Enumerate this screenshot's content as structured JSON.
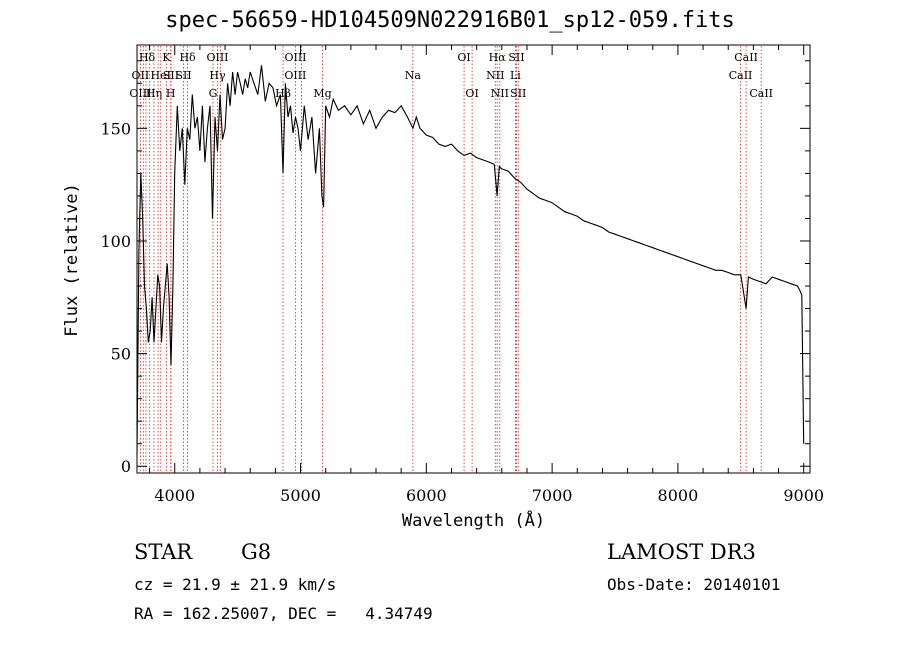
{
  "chart_data": {
    "type": "line",
    "title": "spec-56659-HD104509N022916B01_sp12-059.fits",
    "xlabel": "Wavelength (Å)",
    "ylabel": "Flux (relative)",
    "xlim": [
      3700,
      9050
    ],
    "ylim": [
      -3,
      187
    ],
    "x_ticks": [
      4000,
      5000,
      6000,
      7000,
      8000,
      9000
    ],
    "x_tick_labels": [
      "4000",
      "5000",
      "6000",
      "7000",
      "8000",
      "9000"
    ],
    "y_ticks": [
      0,
      50,
      100,
      150
    ],
    "y_tick_labels": [
      "0",
      "50",
      "100",
      "150"
    ],
    "series": [
      {
        "name": "spectrum",
        "x": [
          3700,
          3715,
          3730,
          3745,
          3760,
          3775,
          3790,
          3805,
          3820,
          3835,
          3850,
          3865,
          3880,
          3895,
          3910,
          3925,
          3940,
          3955,
          3970,
          3985,
          4000,
          4020,
          4040,
          4060,
          4080,
          4100,
          4120,
          4140,
          4160,
          4180,
          4200,
          4220,
          4240,
          4260,
          4280,
          4300,
          4320,
          4340,
          4360,
          4380,
          4400,
          4420,
          4440,
          4460,
          4480,
          4500,
          4520,
          4540,
          4560,
          4580,
          4600,
          4630,
          4660,
          4690,
          4720,
          4750,
          4780,
          4810,
          4840,
          4861,
          4880,
          4900,
          4920,
          4940,
          4960,
          4980,
          5000,
          5030,
          5060,
          5090,
          5120,
          5150,
          5170,
          5183,
          5200,
          5230,
          5260,
          5300,
          5350,
          5400,
          5450,
          5500,
          5550,
          5600,
          5650,
          5700,
          5750,
          5800,
          5850,
          5893,
          5920,
          5950,
          6000,
          6050,
          6100,
          6150,
          6200,
          6250,
          6300,
          6350,
          6400,
          6450,
          6500,
          6540,
          6563,
          6580,
          6600,
          6650,
          6700,
          6750,
          6800,
          6850,
          6900,
          6950,
          7000,
          7050,
          7100,
          7150,
          7200,
          7250,
          7300,
          7350,
          7400,
          7450,
          7500,
          7550,
          7600,
          7650,
          7700,
          7750,
          7800,
          7850,
          7900,
          7950,
          8000,
          8050,
          8100,
          8150,
          8200,
          8250,
          8300,
          8350,
          8400,
          8450,
          8500,
          8542,
          8560,
          8600,
          8650,
          8700,
          8750,
          8800,
          8850,
          8900,
          8950,
          8970,
          8985,
          9000
        ],
        "values": [
          5,
          95,
          130,
          110,
          80,
          70,
          55,
          60,
          75,
          55,
          70,
          85,
          80,
          55,
          70,
          80,
          90,
          75,
          45,
          80,
          130,
          160,
          140,
          150,
          125,
          150,
          145,
          165,
          150,
          155,
          140,
          160,
          135,
          150,
          160,
          110,
          155,
          140,
          165,
          145,
          150,
          170,
          160,
          175,
          165,
          175,
          170,
          165,
          172,
          168,
          175,
          170,
          165,
          178,
          162,
          170,
          168,
          160,
          165,
          130,
          170,
          155,
          160,
          148,
          155,
          150,
          140,
          160,
          145,
          155,
          130,
          150,
          120,
          115,
          160,
          155,
          163,
          158,
          160,
          156,
          160,
          152,
          158,
          150,
          155,
          158,
          157,
          160,
          155,
          150,
          155,
          150,
          147,
          146,
          143,
          142,
          143,
          140,
          138,
          139,
          137,
          136,
          135,
          134,
          120,
          133,
          132,
          131,
          128,
          126,
          123,
          121,
          119,
          118,
          117,
          115,
          113,
          112,
          111,
          109,
          108,
          107,
          106,
          104,
          103,
          102,
          101,
          100,
          99,
          98,
          97,
          96,
          95,
          94,
          93,
          92,
          91,
          90,
          89,
          88,
          87,
          87,
          86,
          85,
          85,
          70,
          84,
          83,
          82,
          81,
          84,
          83,
          82,
          81,
          80,
          78,
          76,
          10
        ]
      }
    ],
    "spectral_lines": [
      {
        "label": "Hδ",
        "x": 3780,
        "row": 1
      },
      {
        "label": "OII",
        "x": 3727,
        "row": 2
      },
      {
        "label": "OIII",
        "x": 3727,
        "row": 3
      },
      {
        "label": "K",
        "x": 3934,
        "row": 1
      },
      {
        "label": "HeI",
        "x": 3889,
        "row": 2
      },
      {
        "label": "Hη",
        "x": 3835,
        "row": 3
      },
      {
        "label": "SII",
        "x": 3970,
        "row": 2
      },
      {
        "label": "H",
        "x": 3968,
        "row": 3
      },
      {
        "label": "Hδ",
        "x": 4102,
        "row": 1
      },
      {
        "label": "SII",
        "x": 4070,
        "row": 2
      },
      {
        "label": "OIII",
        "x": 4340,
        "row": 1
      },
      {
        "label": "Hγ",
        "x": 4340,
        "row": 2
      },
      {
        "label": "G",
        "x": 4304,
        "row": 3
      },
      {
        "label": "OIII",
        "x": 4960,
        "row": 1
      },
      {
        "label": "OIII",
        "x": 4959,
        "row": 2
      },
      {
        "label": "Hβ",
        "x": 4861,
        "row": 3
      },
      {
        "label": "Mg",
        "x": 5175,
        "row": 3
      },
      {
        "label": "Na",
        "x": 5893,
        "row": 2
      },
      {
        "label": "OI",
        "x": 6300,
        "row": 1
      },
      {
        "label": "OI",
        "x": 6364,
        "row": 3
      },
      {
        "label": "Hα",
        "x": 6563,
        "row": 1
      },
      {
        "label": "SII",
        "x": 6717,
        "row": 1
      },
      {
        "label": "NII",
        "x": 6548,
        "row": 2
      },
      {
        "label": "Li",
        "x": 6708,
        "row": 2
      },
      {
        "label": "NII",
        "x": 6584,
        "row": 3
      },
      {
        "label": "SII",
        "x": 6731,
        "row": 3
      },
      {
        "label": "CaII",
        "x": 8542,
        "row": 1
      },
      {
        "label": "CaII",
        "x": 8498,
        "row": 2
      },
      {
        "label": "CaII",
        "x": 8662,
        "row": 3
      }
    ],
    "line_marker_x": [
      3727,
      3750,
      3771,
      3798,
      3835,
      3868,
      3889,
      3934,
      3968,
      3970,
      4070,
      4102,
      4304,
      4340,
      4363,
      4861,
      4959,
      5007,
      5175,
      5893,
      6300,
      6364,
      6548,
      6563,
      6584,
      6708,
      6717,
      6731,
      8498,
      8542,
      8662
    ]
  },
  "info": {
    "object_class": "STAR",
    "subclass": "G8",
    "survey": "LAMOST DR3",
    "cz_line": "cz = 21.9 ± 21.9 km/s",
    "obs_date": "Obs-Date: 20140101",
    "coords": "RA = 162.25007, DEC =   4.34749"
  },
  "colors": {
    "line_marker": "#cc2222",
    "spectrum": "#000000",
    "axis": "#000000"
  }
}
